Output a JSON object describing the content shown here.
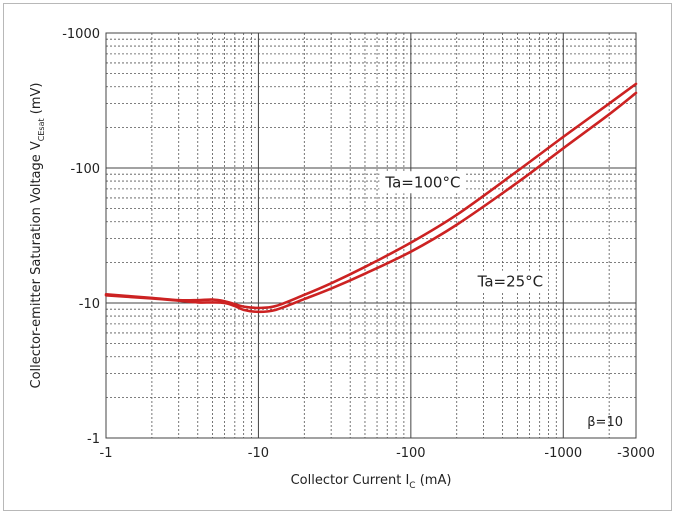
{
  "chart_data": {
    "type": "line",
    "xscale": "log",
    "yscale": "log",
    "xlim": [
      -1,
      -3000
    ],
    "ylim": [
      -1,
      -1000
    ],
    "grid": true,
    "xlabel": {
      "main": "Collector Current  I",
      "sub": "C",
      "unit": " (mA)"
    },
    "ylabel": {
      "main": "Collector-emitter Saturation Voltage  V",
      "sub": "CEsat",
      "unit": " (mV)"
    },
    "x_ticks": [
      {
        "value": -1,
        "label": "-1"
      },
      {
        "value": -10,
        "label": "-10"
      },
      {
        "value": -100,
        "label": "-100"
      },
      {
        "value": -1000,
        "label": "-1000"
      },
      {
        "value": -3000,
        "label": "-3000"
      }
    ],
    "y_ticks": [
      {
        "value": -1,
        "label": "-1"
      },
      {
        "value": -10,
        "label": "-10"
      },
      {
        "value": -100,
        "label": "-100"
      },
      {
        "value": -1000,
        "label": "-1000"
      }
    ],
    "line_color": "#cc2222",
    "series": [
      {
        "name": "Ta=100°C",
        "x": [
          -1,
          -2,
          -3,
          -4,
          -5,
          -6,
          -7,
          -8,
          -10,
          -13,
          -20,
          -30,
          -50,
          -100,
          -200,
          -500,
          -1000,
          -2000,
          -3000
        ],
        "y": [
          -11.6,
          -10.9,
          -10.5,
          -10.5,
          -10.6,
          -10.3,
          -9.8,
          -9.4,
          -9.2,
          -9.5,
          -11.5,
          -14,
          -18.5,
          -28,
          -45,
          -95,
          -170,
          -300,
          -420
        ]
      },
      {
        "name": "Ta=25°C",
        "x": [
          -1,
          -2,
          -3,
          -4,
          -5,
          -6,
          -7,
          -8,
          -10,
          -13,
          -20,
          -30,
          -50,
          -100,
          -200,
          -500,
          -1000,
          -2000,
          -3000
        ],
        "y": [
          -11.4,
          -10.8,
          -10.4,
          -10.1,
          -10.1,
          -10.0,
          -9.5,
          -8.9,
          -8.6,
          -8.9,
          -10.7,
          -12.8,
          -16.5,
          -24,
          -38,
          -78,
          -140,
          -250,
          -360
        ]
      }
    ],
    "annotations": [
      {
        "text": "Ta=100°C",
        "x": -120,
        "y": -72
      },
      {
        "text": "Ta=25°C",
        "x": -450,
        "y": -13.2
      }
    ],
    "note": "β=10"
  }
}
